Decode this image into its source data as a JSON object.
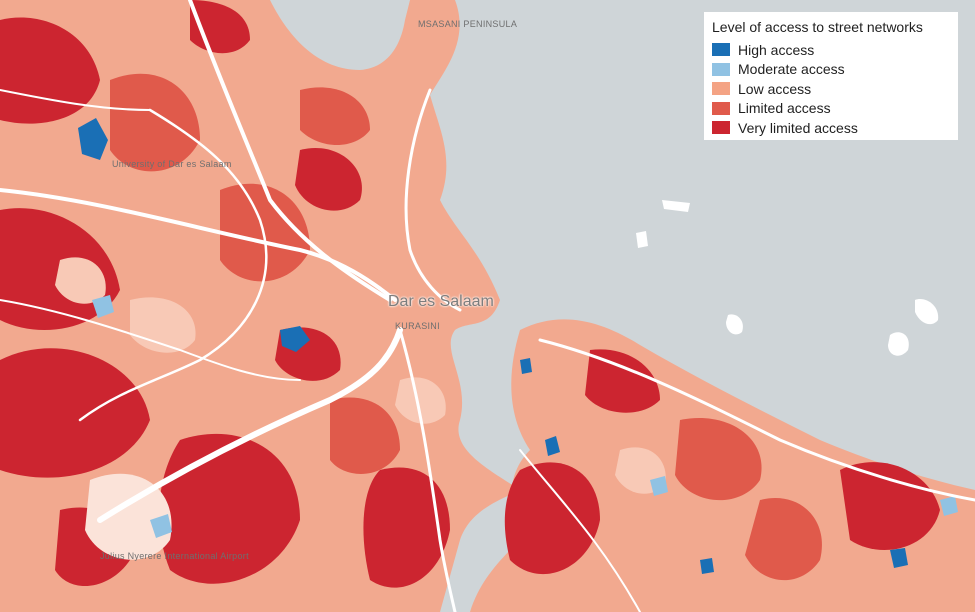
{
  "legend": {
    "title": "Level of access to street networks",
    "items": [
      {
        "label": "High access",
        "color": "#1a6fb5"
      },
      {
        "label": "Moderate access",
        "color": "#90c2e3"
      },
      {
        "label": "Low access",
        "color": "#f4a384"
      },
      {
        "label": "Limited access",
        "color": "#e05a4b"
      },
      {
        "label": "Very limited access",
        "color": "#cc2530"
      }
    ]
  },
  "map": {
    "city_label": "Dar es Salaam",
    "place_labels": {
      "university": "University of Dar es Salaam",
      "airport": "Julius Nyerere International Airport",
      "msasani": "Msasani Peninsula",
      "kurasini": "Kurasini"
    },
    "colors": {
      "water": "#cfd5d8",
      "land": "#f6c8b8",
      "roads": "#ffffff"
    }
  }
}
